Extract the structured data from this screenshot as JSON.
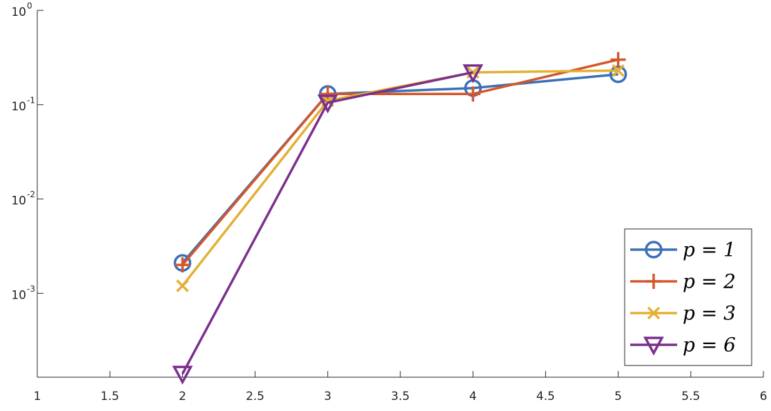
{
  "chart_data": {
    "type": "line",
    "x": [
      2,
      3,
      4,
      5
    ],
    "series": [
      {
        "name": "p = 1",
        "color": "#3b6fb6",
        "marker": "circle",
        "values": [
          0.0021,
          0.13,
          0.15,
          0.21
        ]
      },
      {
        "name": "p = 2",
        "color": "#d4572a",
        "marker": "plus",
        "values": [
          0.002,
          0.13,
          0.13,
          0.3
        ]
      },
      {
        "name": "p = 3",
        "color": "#e3b034",
        "marker": "x",
        "values": [
          0.0012,
          0.11,
          0.22,
          0.23
        ]
      },
      {
        "name": "p = 6",
        "color": "#7b2f8e",
        "marker": "triangle-down",
        "values": [
          0.00014,
          0.105,
          0.22,
          null
        ]
      }
    ],
    "xlim": [
      1,
      6
    ],
    "xticks": [
      1,
      1.5,
      2,
      2.5,
      3,
      3.5,
      4,
      4.5,
      5,
      5.5,
      6
    ],
    "ylim": [
      0.000129,
      1
    ],
    "log_y": true,
    "yticks": [
      {
        "value": 0.001,
        "label": "10",
        "exponent": "-3"
      },
      {
        "value": 0.01,
        "label": "10",
        "exponent": "-2"
      },
      {
        "value": 0.1,
        "label": "10",
        "exponent": "-1"
      },
      {
        "value": 1,
        "label": "10",
        "exponent": "0"
      }
    ],
    "legend": "southeast"
  }
}
